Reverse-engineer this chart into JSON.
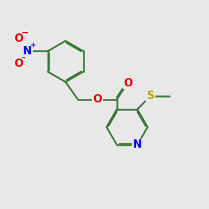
{
  "bg_color": "#e8e8e8",
  "bond_color": "#3a7a3a",
  "N_color": "#0000ee",
  "O_color": "#ee0000",
  "S_color": "#bbaa00",
  "bond_width": 1.8,
  "dbo": 0.055,
  "font_size": 11,
  "fig_size": [
    3.0,
    3.0
  ],
  "xlim": [
    0,
    10
  ],
  "ylim": [
    0,
    10
  ]
}
